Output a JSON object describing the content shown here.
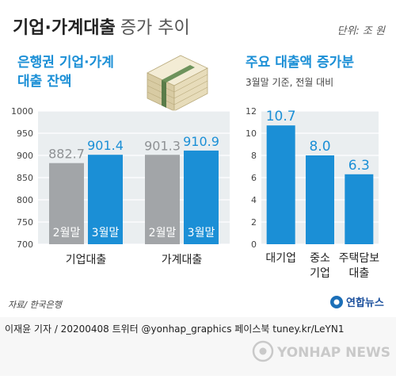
{
  "header": {
    "title_bold": "기업·가계대출",
    "title_light": "증가 추이",
    "unit": "단위: 조 원"
  },
  "colors": {
    "accent_blue": "#1b8fd6",
    "bar_gray": "#a2a5a8",
    "panel_bg": "#eaeef0",
    "title_color": "#222222",
    "footer_bg": "#f7f7f7"
  },
  "left_panel": {
    "title_line1": "은행권 기업·가계",
    "title_line2": "대출 잔액"
  },
  "right_panel": {
    "title": "주요 대출액 증가분",
    "subtitle": "3월말 기준, 전월 대비"
  },
  "chart_data": [
    {
      "type": "bar",
      "title": "은행권 기업·가계 대출 잔액",
      "categories": [
        "기업대출",
        "가계대출"
      ],
      "series": [
        {
          "name": "2월말",
          "values": [
            882.7,
            901.3
          ],
          "color": "#a2a5a8"
        },
        {
          "name": "3월말",
          "values": [
            901.4,
            910.9
          ],
          "color": "#1b8fd6"
        }
      ],
      "value_labels": [
        [
          "882.7",
          "901.4"
        ],
        [
          "901.3",
          "910.9"
        ]
      ],
      "ylim": [
        700,
        1000
      ],
      "yticks": [
        700,
        750,
        800,
        850,
        900,
        950,
        1000
      ],
      "grid": true
    },
    {
      "type": "bar",
      "title": "주요 대출액 증가분",
      "subtitle": "3월말 기준, 전월 대비",
      "categories": [
        [
          "대기업"
        ],
        [
          "중소",
          "기업"
        ],
        [
          "주택담보",
          "대출"
        ]
      ],
      "values": [
        10.7,
        8.0,
        6.3
      ],
      "value_labels": [
        "10.7",
        "8.0",
        "6.3"
      ],
      "ylim": [
        0,
        12
      ],
      "yticks": [
        0,
        2,
        4,
        6,
        8,
        10,
        12
      ],
      "grid": true
    }
  ],
  "source": "자료/ 한국은행",
  "logo_text": "연합뉴스",
  "footer": {
    "byline": "이재윤 기자 / 20200408   트위터 @yonhap_graphics  페이스북 tuney.kr/LeYN1",
    "watermark": "YONHAP NEWS"
  }
}
